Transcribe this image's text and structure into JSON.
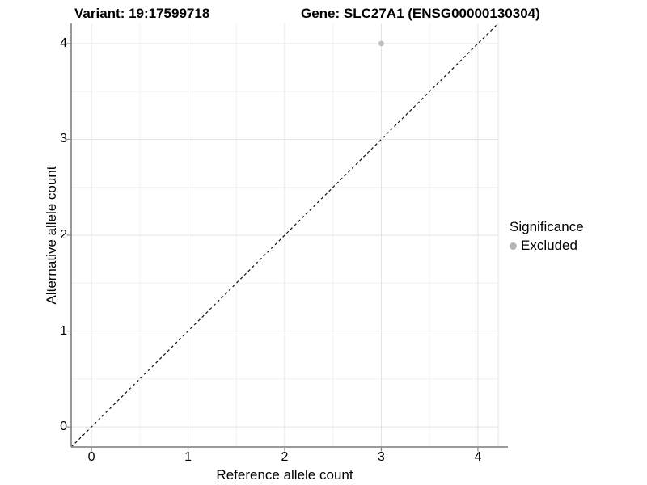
{
  "titles": {
    "variant": "Variant: 19:17599718",
    "gene": "Gene: SLC27A1 (ENSG00000130304)"
  },
  "chart_data": {
    "type": "scatter",
    "xlabel": "Reference allele count",
    "ylabel": "Alternative allele count",
    "xlim": [
      -0.21,
      4.21
    ],
    "ylim": [
      -0.21,
      4.21
    ],
    "x_ticks": [
      0,
      1,
      2,
      3,
      4
    ],
    "y_ticks": [
      0,
      1,
      2,
      3,
      4
    ],
    "x_minor_ticks": [
      0.5,
      1.5,
      2.5,
      3.5
    ],
    "y_minor_ticks": [
      0.5,
      1.5,
      2.5,
      3.5
    ],
    "grid": "on",
    "points": [
      {
        "x": 3,
        "y": 4,
        "series": "Excluded"
      }
    ],
    "reference_line": {
      "slope": 1,
      "intercept": 0,
      "style": "dashed",
      "color": "#111111"
    },
    "legend": {
      "title": "Significance",
      "position": "right",
      "items": [
        {
          "label": "Excluded",
          "color": "#b5b5b5",
          "marker": "circle"
        }
      ]
    }
  },
  "colors": {
    "background": "#ffffff",
    "major_grid": "#e3e3e3",
    "minor_grid": "#f1f1f1",
    "axis_line": "#8c8c8c",
    "tick_mark": "#8c8c8c",
    "panel_right_border": "#e6e6e6",
    "point_fill": "#c0c0c0",
    "text": "#000000"
  }
}
